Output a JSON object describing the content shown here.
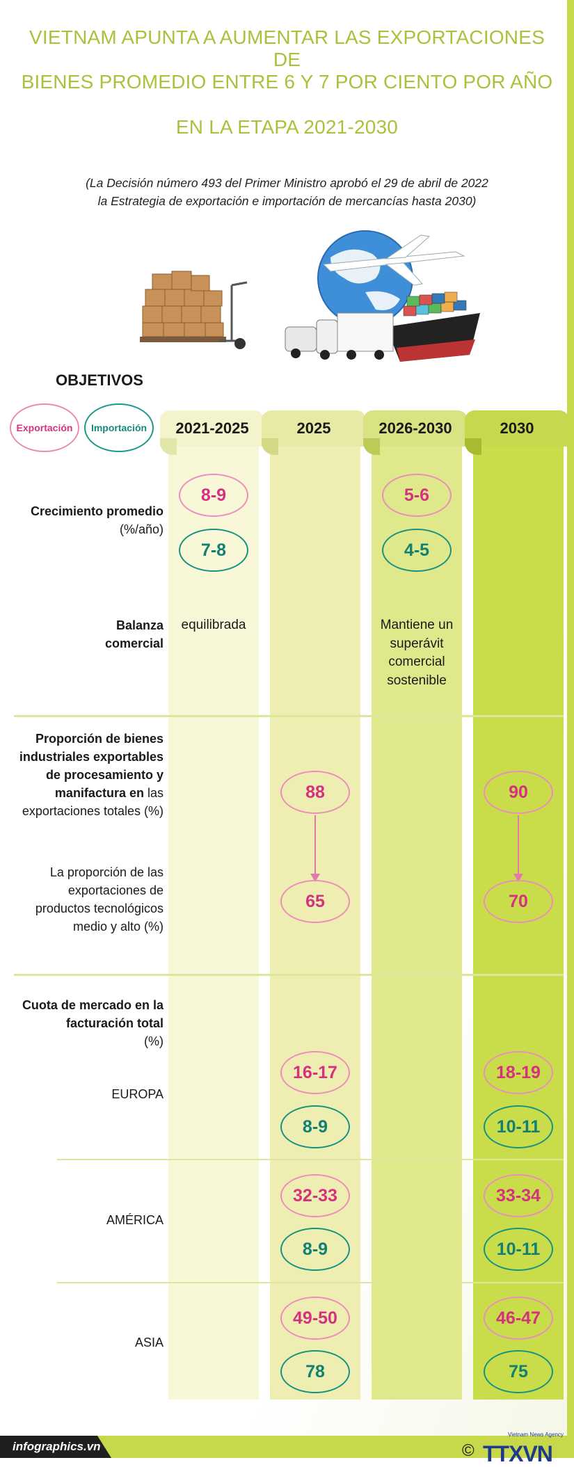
{
  "title": {
    "line1": "VIETNAM APUNTA A AUMENTAR LAS EXPORTACIONES DE",
    "line2": "BIENES PROMEDIO ENTRE 6 Y 7 POR CIENTO POR AÑO",
    "line3": "EN LA ETAPA 2021-2030"
  },
  "subtitle": {
    "line1": "(La Decisión número 493 del Primer Ministro aprobó el 29 de abril de 2022",
    "line2": "la Estrategia de exportación e importación de mercancías hasta 2030)"
  },
  "objetivos": "OBJETIVOS",
  "legend": {
    "export": "Exportación",
    "import": "Importación"
  },
  "columns": [
    "2021-2025",
    "2025",
    "2026-2030",
    "2030"
  ],
  "rows": {
    "crecimiento": {
      "bold": "Crecimiento promedio",
      "unit": "(%/año)",
      "exp_2021_2025": "8-9",
      "imp_2021_2025": "7-8",
      "exp_2026_2030": "5-6",
      "imp_2026_2030": "4-5"
    },
    "balanza": {
      "bold": "Balanza comercial",
      "val_2021_2025": "equilibrada",
      "val_2026_2030": "Mantiene un superávit comercial sostenible"
    },
    "proporcion": {
      "bold": "Proporción de bienes industriales exportables de procesamiento y manifactura en",
      "rest": "las exportaciones totales (%)",
      "val_2025": "88",
      "val_2030": "90"
    },
    "tecnologicos": {
      "label": "La proporción de las exportaciones de productos tecnológicos medio y alto (%)",
      "val_2025": "65",
      "val_2030": "70"
    },
    "cuota": {
      "bold": "Cuota de mercado en la facturación total",
      "unit": "(%)"
    },
    "europa": {
      "label": "EUROPA",
      "exp_2025": "16-17",
      "imp_2025": "8-9",
      "exp_2030": "18-19",
      "imp_2030": "10-11"
    },
    "america": {
      "label": "AMÉRICA",
      "exp_2025": "32-33",
      "imp_2025": "8-9",
      "exp_2030": "33-34",
      "imp_2030": "10-11"
    },
    "asia": {
      "label": "ASIA",
      "exp_2025": "49-50",
      "imp_2025": "78",
      "exp_2030": "46-47",
      "imp_2030": "75"
    }
  },
  "footer": {
    "site": "infographics.vn",
    "copyright": "©",
    "logo": "TTXVN",
    "logo_sub": "Vietnam News Agency"
  },
  "colors": {
    "title": "#a9c23c",
    "export": "#d4317f",
    "import": "#128070",
    "col1": "#f8f8d8",
    "col2": "#eeeeb2",
    "col3": "#dfe88a",
    "col4": "#c9dc4a"
  }
}
